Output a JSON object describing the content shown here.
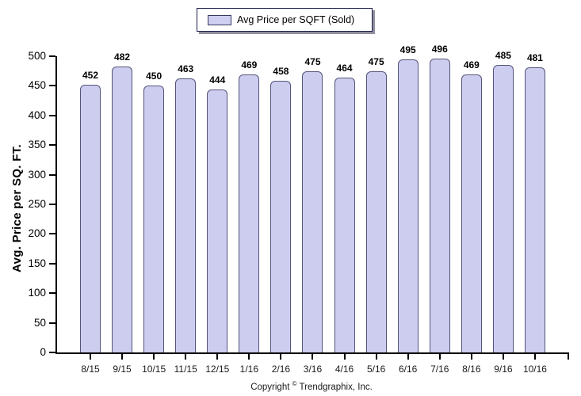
{
  "legend": {
    "label": "Avg Price per SQFT (Sold)"
  },
  "footer": {
    "prefix": "Copyright",
    "symbol": "©",
    "suffix": "Trendgraphix, Inc."
  },
  "colors": {
    "bar_fill": "#cdcdef",
    "bar_border": "#54547a",
    "axis": "#000000",
    "background": "#ffffff"
  },
  "chart_data": {
    "type": "bar",
    "title": "Avg Price per SQFT (Sold)",
    "categories": [
      "8/15",
      "9/15",
      "10/15",
      "11/15",
      "12/15",
      "1/16",
      "2/16",
      "3/16",
      "4/16",
      "5/16",
      "6/16",
      "7/16",
      "8/16",
      "9/16",
      "10/16"
    ],
    "values": [
      452,
      482,
      450,
      463,
      444,
      469,
      458,
      475,
      464,
      475,
      495,
      496,
      469,
      485,
      481
    ],
    "xlabel": "",
    "ylabel": "Avg. Price per SQ. FT.",
    "ylim": [
      0,
      500
    ],
    "ytick_step": 50,
    "grid": false,
    "legend_position": "top-center",
    "value_labels": true
  }
}
